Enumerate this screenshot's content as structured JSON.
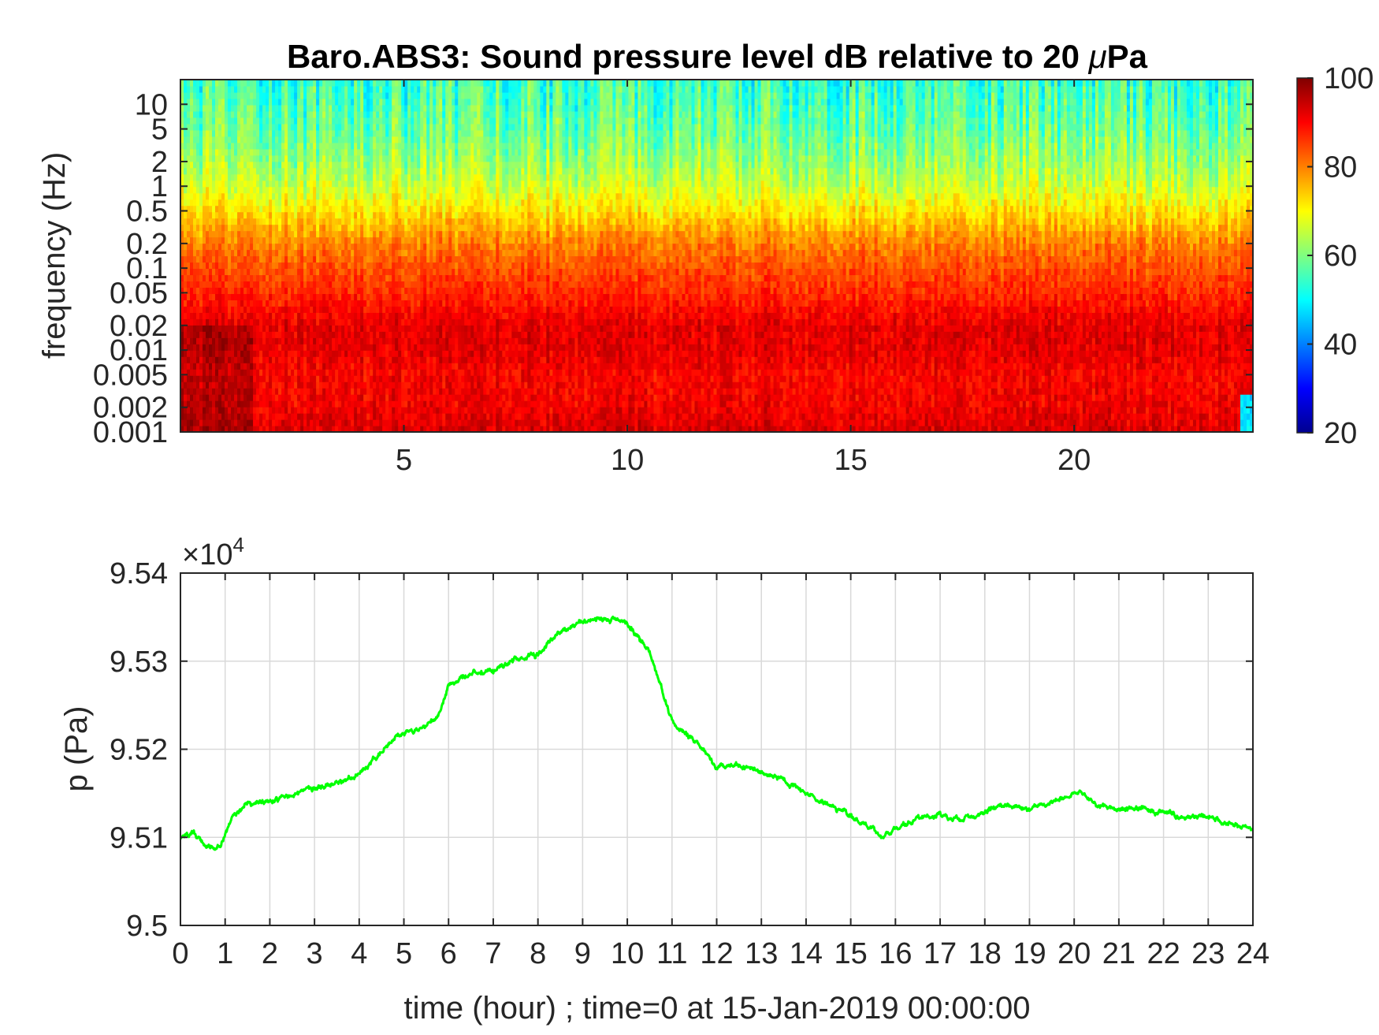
{
  "chart_data": [
    {
      "type": "heatmap",
      "title_main": "Baro.ABS3: Sound pressure level dB relative to 20 ",
      "title_mu": "μ",
      "title_unit": "Pa",
      "xlabel": "",
      "ylabel": "frequency (Hz)",
      "xlim": [
        0,
        24
      ],
      "ylim": [
        0.001,
        20
      ],
      "yscale": "log",
      "x_ticks": [
        5,
        10,
        15,
        20
      ],
      "x_tick_labels": [
        "5",
        "10",
        "15",
        "20"
      ],
      "y_ticks": [
        0.001,
        0.002,
        0.005,
        0.01,
        0.02,
        0.05,
        0.1,
        0.2,
        0.5,
        1,
        2,
        5,
        10
      ],
      "y_tick_labels": [
        "0.001",
        "0.002",
        "0.005",
        "0.01",
        "0.02",
        "0.05",
        "0.1",
        "0.2",
        "0.5",
        "1",
        "2",
        "5",
        "10"
      ],
      "colormap": "jet",
      "clim": [
        20,
        100
      ],
      "colorbar_ticks": [
        20,
        40,
        60,
        80,
        100
      ],
      "colorbar_tick_labels": [
        "20",
        "40",
        "60",
        "80",
        "100"
      ],
      "level_profile": [
        {
          "freq": 0.001,
          "db": 93
        },
        {
          "freq": 0.002,
          "db": 91
        },
        {
          "freq": 0.005,
          "db": 90
        },
        {
          "freq": 0.01,
          "db": 92
        },
        {
          "freq": 0.02,
          "db": 92
        },
        {
          "freq": 0.05,
          "db": 87
        },
        {
          "freq": 0.1,
          "db": 84
        },
        {
          "freq": 0.2,
          "db": 80
        },
        {
          "freq": 0.5,
          "db": 72
        },
        {
          "freq": 1,
          "db": 66
        },
        {
          "freq": 2,
          "db": 62
        },
        {
          "freq": 5,
          "db": 58
        },
        {
          "freq": 10,
          "db": 56
        },
        {
          "freq": 20,
          "db": 54
        }
      ]
    },
    {
      "type": "line",
      "xlabel": "time (hour) ; time=0 at 15-Jan-2019 00:00:00",
      "ylabel": "p (Pa)",
      "xlim": [
        0,
        24
      ],
      "ylim": [
        95000,
        95400
      ],
      "y_multiplier_base": "×10",
      "y_multiplier_exp": "4",
      "grid": true,
      "x_ticks": [
        0,
        1,
        2,
        3,
        4,
        5,
        6,
        7,
        8,
        9,
        10,
        11,
        12,
        13,
        14,
        15,
        16,
        17,
        18,
        19,
        20,
        21,
        22,
        23,
        24
      ],
      "x_tick_labels": [
        "0",
        "1",
        "2",
        "3",
        "4",
        "5",
        "6",
        "7",
        "8",
        "9",
        "10",
        "11",
        "12",
        "13",
        "14",
        "15",
        "16",
        "17",
        "18",
        "19",
        "20",
        "21",
        "22",
        "23",
        "24"
      ],
      "y_ticks": [
        95000,
        95100,
        95200,
        95300,
        95400
      ],
      "y_tick_labels": [
        "9.5",
        "9.51",
        "9.52",
        "9.53",
        "9.54"
      ],
      "series": [
        {
          "color": "#00ff00",
          "x": [
            0,
            0.3,
            0.6,
            0.9,
            1.2,
            1.5,
            2.0,
            2.5,
            3.0,
            3.5,
            4.0,
            4.5,
            4.8,
            5.0,
            5.5,
            5.8,
            6.0,
            6.5,
            7.0,
            7.5,
            8.0,
            8.5,
            9.0,
            9.5,
            10.0,
            10.5,
            11.0,
            11.5,
            12.0,
            12.5,
            13.0,
            13.5,
            14.0,
            14.5,
            15.0,
            15.5,
            15.7,
            16.0,
            16.5,
            17.0,
            17.5,
            18.0,
            18.5,
            19.0,
            19.5,
            20.0,
            20.5,
            21.0,
            21.5,
            22.0,
            22.5,
            23.0,
            23.5,
            24.0
          ],
          "y": [
            95100,
            95105,
            95088,
            95092,
            95125,
            95138,
            95142,
            95145,
            95158,
            95160,
            95172,
            95198,
            95215,
            95218,
            95225,
            95240,
            95275,
            95285,
            95290,
            95302,
            95308,
            95335,
            95345,
            95350,
            95342,
            95310,
            95230,
            95210,
            95180,
            95182,
            95175,
            95165,
            95150,
            95138,
            95125,
            95108,
            95100,
            95110,
            95122,
            95125,
            95120,
            95128,
            95138,
            95132,
            95140,
            95152,
            95138,
            95133,
            95132,
            95128,
            95123,
            95125,
            95115,
            95108
          ]
        }
      ]
    }
  ]
}
